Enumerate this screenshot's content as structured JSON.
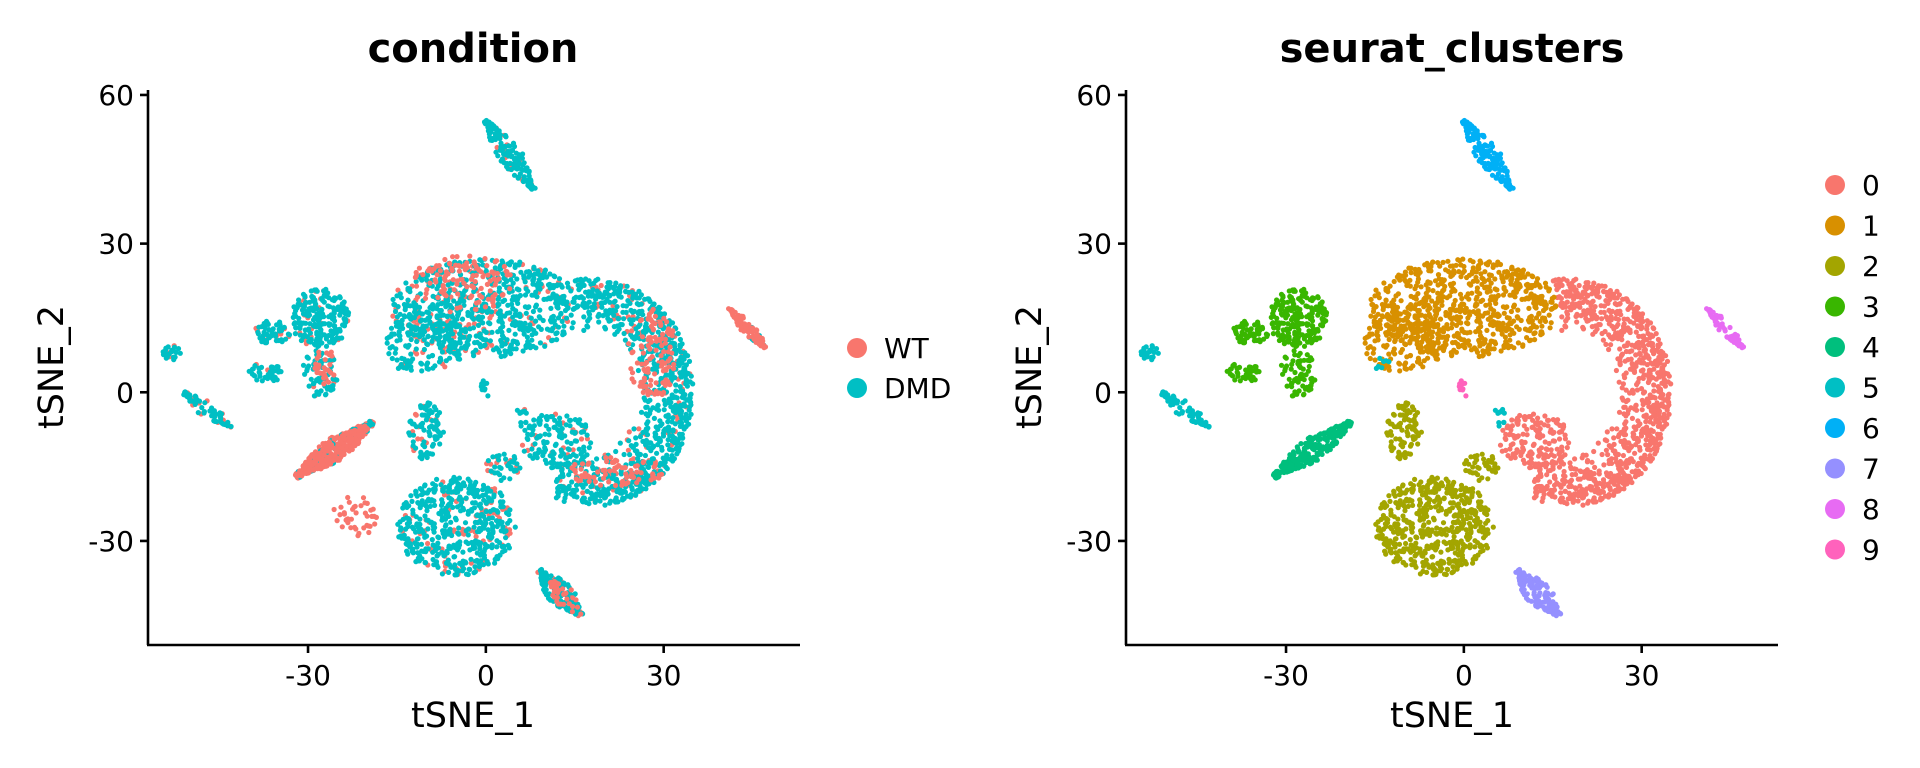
{
  "chart_data": [
    {
      "type": "scatter",
      "title": "condition",
      "xlabel": "tSNE_1",
      "ylabel": "tSNE_2",
      "xlim": [
        -57,
        53
      ],
      "ylim": [
        -51,
        61
      ],
      "xticks": [
        -30,
        0,
        30
      ],
      "xtick_labels": [
        "-30",
        "0",
        "30"
      ],
      "yticks": [
        -30,
        0,
        30,
        60
      ],
      "ytick_labels": [
        "-30",
        "0",
        "30",
        "60"
      ],
      "grid": false,
      "legend_position": "right",
      "color_by": "condition",
      "series": [
        {
          "name": "WT",
          "color": "#F8766D"
        },
        {
          "name": "DMD",
          "color": "#00BFC4"
        }
      ]
    },
    {
      "type": "scatter",
      "title": "seurat_clusters",
      "xlabel": "tSNE_1",
      "ylabel": "tSNE_2",
      "xlim": [
        -57,
        53
      ],
      "ylim": [
        -51,
        61
      ],
      "xticks": [
        -30,
        0,
        30
      ],
      "xtick_labels": [
        "-30",
        "0",
        "30"
      ],
      "yticks": [
        -30,
        0,
        30,
        60
      ],
      "ytick_labels": [
        "-30",
        "0",
        "30",
        "60"
      ],
      "grid": false,
      "legend_position": "right",
      "color_by": "seurat_clusters",
      "series": [
        {
          "name": "0",
          "color": "#F8766D"
        },
        {
          "name": "1",
          "color": "#D89000"
        },
        {
          "name": "2",
          "color": "#A3A500"
        },
        {
          "name": "3",
          "color": "#39B600"
        },
        {
          "name": "4",
          "color": "#00BF7D"
        },
        {
          "name": "5",
          "color": "#00BFC4"
        },
        {
          "name": "6",
          "color": "#00B0F6"
        },
        {
          "name": "7",
          "color": "#9590FF"
        },
        {
          "name": "8",
          "color": "#E76BF3"
        },
        {
          "name": "9",
          "color": "#FF62BC"
        }
      ],
      "clusters": [
        {
          "cluster": "0",
          "type": "arc",
          "cx": 18,
          "cy": 0,
          "rx_in": 8,
          "ry_in": 12,
          "rx_out": 17,
          "ry_out": 23,
          "a0": -115,
          "a1": 100,
          "n": 900
        },
        {
          "cluster": "0",
          "type": "ellipse",
          "cx": 12,
          "cy": -10,
          "rx": 6,
          "ry": 6,
          "n": 160
        },
        {
          "cluster": "1",
          "type": "ellipse",
          "cx": 0,
          "cy": 17,
          "rx": 16,
          "ry": 10,
          "n": 720
        },
        {
          "cluster": "1",
          "type": "ellipse",
          "cx": -10,
          "cy": 10,
          "rx": 7,
          "ry": 6,
          "n": 140
        },
        {
          "cluster": "2",
          "type": "ellipse",
          "cx": -5,
          "cy": -27,
          "rx": 10,
          "ry": 10,
          "n": 520
        },
        {
          "cluster": "2",
          "type": "ellipse",
          "cx": -10,
          "cy": -8,
          "rx": 3,
          "ry": 6,
          "n": 90
        },
        {
          "cluster": "2",
          "type": "ellipse",
          "cx": 3,
          "cy": -15,
          "rx": 3,
          "ry": 3,
          "n": 40
        },
        {
          "cluster": "3",
          "type": "ellipse",
          "cx": -28,
          "cy": 15,
          "rx": 5,
          "ry": 6,
          "n": 220
        },
        {
          "cluster": "3",
          "type": "ellipse",
          "cx": -28,
          "cy": 4,
          "rx": 3,
          "ry": 5,
          "n": 70
        },
        {
          "cluster": "3",
          "type": "ellipse",
          "cx": -36,
          "cy": 12,
          "rx": 3,
          "ry": 2.5,
          "n": 60
        },
        {
          "cluster": "3",
          "type": "ellipse",
          "cx": -37,
          "cy": 4,
          "rx": 3,
          "ry": 2,
          "n": 40
        },
        {
          "cluster": "4",
          "type": "band",
          "x0": -32,
          "y0": -17,
          "x1": -19,
          "y1": -6,
          "w": 2.2,
          "n": 260
        },
        {
          "cluster": "5",
          "type": "ellipse",
          "cx": -53,
          "cy": 8,
          "rx": 1.5,
          "ry": 1.5,
          "n": 25
        },
        {
          "cluster": "5",
          "type": "band",
          "x0": -51,
          "y0": 0,
          "x1": -43,
          "y1": -7,
          "w": 1.5,
          "n": 70
        },
        {
          "cluster": "5",
          "type": "ellipse",
          "cx": -14,
          "cy": 6,
          "rx": 1.5,
          "ry": 1.5,
          "n": 8
        },
        {
          "cluster": "5",
          "type": "ellipse",
          "cx": 6,
          "cy": -5,
          "rx": 1,
          "ry": 2,
          "n": 12
        },
        {
          "cluster": "6",
          "type": "band",
          "x0": 0,
          "y0": 55,
          "x1": 8,
          "y1": 41,
          "w": 2,
          "n": 170
        },
        {
          "cluster": "7",
          "type": "band",
          "x0": 9,
          "y0": -36,
          "x1": 16,
          "y1": -45,
          "w": 2.2,
          "n": 150
        },
        {
          "cluster": "8",
          "type": "band",
          "x0": 41,
          "y0": 17,
          "x1": 47,
          "y1": 9,
          "w": 1.2,
          "n": 60
        },
        {
          "cluster": "9",
          "type": "ellipse",
          "cx": 0,
          "cy": 1,
          "rx": 0.8,
          "ry": 2,
          "n": 12
        }
      ],
      "wt_regions": [
        {
          "type": "band",
          "x0": -32,
          "y0": -17,
          "x1": -20,
          "y1": -7,
          "w": 2,
          "n": 200
        },
        {
          "type": "ellipse",
          "cx": -4,
          "cy": 22,
          "rx": 9,
          "ry": 6,
          "n": 110
        },
        {
          "type": "ellipse",
          "cx": 28,
          "cy": 8,
          "rx": 4,
          "ry": 10,
          "n": 110
        },
        {
          "type": "ellipse",
          "cx": 22,
          "cy": -16,
          "rx": 8,
          "ry": 3,
          "n": 70
        },
        {
          "type": "ellipse",
          "cx": -22,
          "cy": -25,
          "rx": 4,
          "ry": 4,
          "n": 40
        },
        {
          "type": "band",
          "x0": 42,
          "y0": 15,
          "x1": 47,
          "y1": 10,
          "w": 1,
          "n": 30
        },
        {
          "type": "band",
          "x0": 11,
          "y0": -38,
          "x1": 16,
          "y1": -45,
          "w": 2,
          "n": 35
        },
        {
          "type": "ellipse",
          "cx": -27,
          "cy": 5,
          "rx": 2,
          "ry": 4,
          "n": 25
        }
      ]
    }
  ]
}
